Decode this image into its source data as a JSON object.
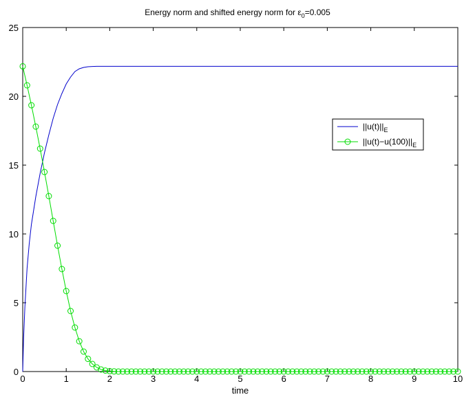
{
  "chart_data": {
    "type": "line",
    "title": {
      "prefix": "Energy norm and shifted energy norm for ε",
      "subscript": "0",
      "suffix": "=0.005"
    },
    "xlabel": "time",
    "ylabel": "",
    "xlim": [
      0,
      10
    ],
    "ylim": [
      0,
      25
    ],
    "xticks": [
      0,
      1,
      2,
      3,
      4,
      5,
      6,
      7,
      8,
      9,
      10
    ],
    "yticks": [
      0,
      5,
      10,
      15,
      20,
      25
    ],
    "grid": false,
    "legend_position": "right, upper middle",
    "series": [
      {
        "name": "||u(t)||",
        "name_subscript": "E",
        "color": "#0000cc",
        "marker": "none",
        "x": [
          0,
          0.02,
          0.05,
          0.1,
          0.15,
          0.2,
          0.3,
          0.4,
          0.5,
          0.6,
          0.7,
          0.8,
          0.9,
          1.0,
          1.1,
          1.2,
          1.3,
          1.4,
          1.5,
          1.6,
          1.7,
          1.8,
          1.9,
          2.0,
          2.5,
          3,
          4,
          5,
          6,
          7,
          8,
          9,
          10
        ],
        "y": [
          0,
          2.4,
          4.7,
          7.5,
          9.3,
          10.7,
          12.7,
          14.4,
          15.9,
          17.2,
          18.4,
          19.4,
          20.2,
          20.9,
          21.4,
          21.8,
          22.0,
          22.1,
          22.15,
          22.17,
          22.18,
          22.18,
          22.18,
          22.18,
          22.18,
          22.18,
          22.18,
          22.18,
          22.18,
          22.18,
          22.18,
          22.18,
          22.18
        ]
      },
      {
        "name": "||u(t)−u(100)||",
        "name_subscript": "E",
        "color": "#00dd00",
        "marker": "circle",
        "x": [
          0,
          0.1,
          0.2,
          0.3,
          0.4,
          0.5,
          0.6,
          0.7,
          0.8,
          0.9,
          1.0,
          1.1,
          1.2,
          1.3,
          1.4,
          1.5,
          1.6,
          1.7,
          1.8,
          1.9,
          2.0,
          2.1,
          2.2,
          2.3,
          2.4,
          2.5,
          2.6,
          2.7,
          2.8,
          2.9,
          3.0,
          3.1,
          3.2,
          3.3,
          3.4,
          3.5,
          3.6,
          3.7,
          3.8,
          3.9,
          4.0,
          4.1,
          4.2,
          4.3,
          4.4,
          4.5,
          4.6,
          4.7,
          4.8,
          4.9,
          5.0,
          5.1,
          5.2,
          5.3,
          5.4,
          5.5,
          5.6,
          5.7,
          5.8,
          5.9,
          6.0,
          6.1,
          6.2,
          6.3,
          6.4,
          6.5,
          6.6,
          6.7,
          6.8,
          6.9,
          7.0,
          7.1,
          7.2,
          7.3,
          7.4,
          7.5,
          7.6,
          7.7,
          7.8,
          7.9,
          8.0,
          8.1,
          8.2,
          8.3,
          8.4,
          8.5,
          8.6,
          8.7,
          8.8,
          8.9,
          9.0,
          9.1,
          9.2,
          9.3,
          9.4,
          9.5,
          9.6,
          9.7,
          9.8,
          9.9,
          10.0
        ],
        "y": [
          22.18,
          20.8,
          19.35,
          17.8,
          16.2,
          14.5,
          12.75,
          10.95,
          9.15,
          7.45,
          5.85,
          4.4,
          3.2,
          2.2,
          1.45,
          0.92,
          0.55,
          0.3,
          0.15,
          0.07,
          0.03,
          0.01,
          0.0,
          0,
          0,
          0,
          0,
          0,
          0,
          0,
          0,
          0,
          0,
          0,
          0,
          0,
          0,
          0,
          0,
          0,
          0,
          0,
          0,
          0,
          0,
          0,
          0,
          0,
          0,
          0,
          0,
          0,
          0,
          0,
          0,
          0,
          0,
          0,
          0,
          0,
          0,
          0,
          0,
          0,
          0,
          0,
          0,
          0,
          0,
          0,
          0,
          0,
          0,
          0,
          0,
          0,
          0,
          0,
          0,
          0,
          0,
          0,
          0,
          0,
          0,
          0,
          0,
          0,
          0,
          0,
          0,
          0,
          0,
          0,
          0,
          0,
          0,
          0,
          0,
          0,
          0
        ]
      }
    ]
  }
}
